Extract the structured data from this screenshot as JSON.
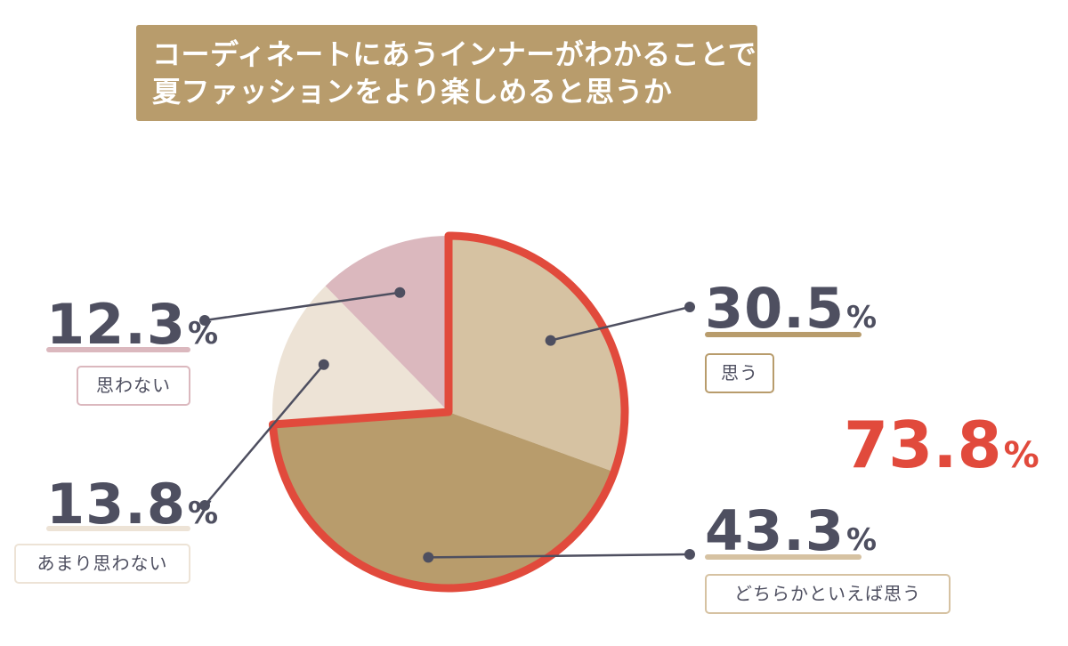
{
  "title": {
    "line1": "コーディネートにあうインナーがわかることで",
    "line2": "夏ファッションをより楽しめると思うか"
  },
  "chart_data": {
    "type": "pie",
    "slices": [
      {
        "label": "思う",
        "value": 30.5,
        "value_label": "30.5",
        "color": "#d6c2a2"
      },
      {
        "label": "どちらかといえば思う",
        "value": 43.3,
        "value_label": "43.3",
        "color": "#b89c6c"
      },
      {
        "label": "あまり思わない",
        "value": 13.8,
        "value_label": "13.8",
        "color": "#ede3d6"
      },
      {
        "label": "思わない",
        "value": 12.3,
        "value_label": "12.3",
        "color": "#dbb8be"
      }
    ],
    "percent_unit": "%",
    "highlight": {
      "value": 73.8,
      "value_label": "73.8",
      "color": "#e14a3c",
      "slices": [
        "思う",
        "どちらかといえば思う"
      ]
    }
  },
  "colors": {
    "title_bg": "#b89c6c",
    "text": "#4e4f60",
    "leader": "#4e4f60",
    "highlight": "#e14a3c"
  }
}
